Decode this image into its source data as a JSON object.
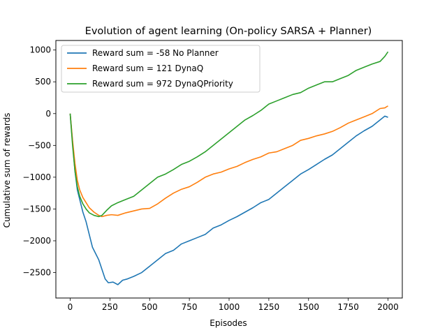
{
  "chart_data": {
    "type": "line",
    "title": "Evolution of agent learning (On-policy SARSA + Planner)",
    "xlabel": "Episodes",
    "ylabel": "Cumulative sum of rewards",
    "xlim": [
      -90,
      2090
    ],
    "ylim": [
      -2900,
      1150
    ],
    "xticks": [
      0,
      250,
      500,
      750,
      1000,
      1250,
      1500,
      1750,
      2000
    ],
    "yticks": [
      1000,
      500,
      0,
      -500,
      -1000,
      -1500,
      -2000,
      -2500
    ],
    "xtick_labels": [
      "0",
      "250",
      "500",
      "750",
      "1000",
      "1250",
      "1500",
      "1750",
      "2000"
    ],
    "ytick_labels": [
      "1000",
      "500",
      "0",
      "−500",
      "−1000",
      "−1500",
      "−2000",
      "−2500"
    ],
    "grid": false,
    "legend_position": "top-left",
    "series": [
      {
        "name": "Reward sum = -58 No Planner",
        "color": "#1f77b4",
        "x": [
          0,
          15,
          30,
          45,
          60,
          80,
          100,
          120,
          140,
          160,
          180,
          200,
          220,
          240,
          270,
          300,
          330,
          360,
          400,
          450,
          500,
          550,
          600,
          650,
          700,
          750,
          800,
          850,
          900,
          950,
          1000,
          1050,
          1100,
          1150,
          1200,
          1250,
          1300,
          1350,
          1400,
          1450,
          1500,
          1550,
          1600,
          1650,
          1700,
          1750,
          1800,
          1850,
          1900,
          1950,
          1980,
          2000
        ],
        "y": [
          0,
          -450,
          -900,
          -1200,
          -1350,
          -1550,
          -1700,
          -1900,
          -2100,
          -2200,
          -2300,
          -2450,
          -2600,
          -2660,
          -2650,
          -2690,
          -2620,
          -2600,
          -2560,
          -2500,
          -2400,
          -2300,
          -2200,
          -2150,
          -2050,
          -2000,
          -1950,
          -1900,
          -1800,
          -1750,
          -1680,
          -1620,
          -1550,
          -1480,
          -1400,
          -1350,
          -1250,
          -1150,
          -1050,
          -950,
          -880,
          -800,
          -720,
          -650,
          -550,
          -450,
          -350,
          -270,
          -200,
          -100,
          -40,
          -58
        ]
      },
      {
        "name": "Reward sum = 121 DynaQ",
        "color": "#ff7f0e",
        "x": [
          0,
          15,
          30,
          45,
          60,
          80,
          100,
          120,
          150,
          180,
          200,
          230,
          260,
          300,
          350,
          400,
          450,
          500,
          550,
          600,
          650,
          700,
          750,
          800,
          850,
          900,
          950,
          1000,
          1050,
          1100,
          1150,
          1200,
          1250,
          1300,
          1350,
          1400,
          1450,
          1500,
          1550,
          1600,
          1650,
          1700,
          1750,
          1800,
          1850,
          1900,
          1950,
          1980,
          2000
        ],
        "y": [
          0,
          -420,
          -780,
          -1050,
          -1200,
          -1320,
          -1400,
          -1480,
          -1550,
          -1600,
          -1620,
          -1600,
          -1590,
          -1600,
          -1560,
          -1530,
          -1500,
          -1490,
          -1420,
          -1330,
          -1250,
          -1190,
          -1150,
          -1080,
          -1000,
          -950,
          -920,
          -870,
          -830,
          -770,
          -720,
          -680,
          -620,
          -600,
          -550,
          -500,
          -420,
          -390,
          -350,
          -320,
          -280,
          -220,
          -150,
          -100,
          -50,
          0,
          80,
          90,
          121
        ]
      },
      {
        "name": "Reward sum = 972 DynaQPriority",
        "color": "#2ca02c",
        "x": [
          0,
          15,
          30,
          45,
          60,
          80,
          100,
          120,
          150,
          180,
          200,
          230,
          260,
          300,
          350,
          400,
          450,
          500,
          550,
          600,
          650,
          700,
          750,
          800,
          850,
          900,
          950,
          1000,
          1050,
          1100,
          1150,
          1200,
          1250,
          1300,
          1350,
          1400,
          1450,
          1500,
          1550,
          1600,
          1650,
          1700,
          1750,
          1800,
          1850,
          1900,
          1950,
          1980,
          2000
        ],
        "y": [
          0,
          -500,
          -900,
          -1150,
          -1300,
          -1420,
          -1500,
          -1560,
          -1600,
          -1620,
          -1600,
          -1520,
          -1450,
          -1400,
          -1350,
          -1300,
          -1200,
          -1100,
          -1000,
          -950,
          -880,
          -800,
          -750,
          -680,
          -600,
          -500,
          -400,
          -300,
          -200,
          -100,
          -30,
          50,
          150,
          200,
          250,
          300,
          330,
          400,
          450,
          500,
          500,
          550,
          600,
          680,
          730,
          780,
          820,
          900,
          972
        ]
      }
    ]
  }
}
